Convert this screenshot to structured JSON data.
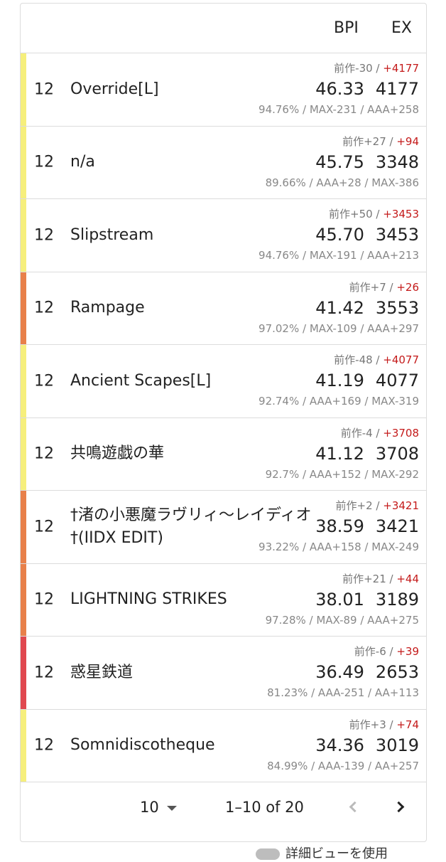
{
  "header": {
    "bpi_label": "BPI",
    "ex_label": "EX"
  },
  "rows": [
    {
      "level": "12",
      "title": "Override[L]",
      "prev": "前作-30 / ",
      "diff": "+4177",
      "bpi": "46.33",
      "ex": "4177",
      "sub": "94.76% / MAX-231 / AAA+258",
      "color": "#f6ef7c"
    },
    {
      "level": "12",
      "title": "n/a",
      "prev": "前作+27 / ",
      "diff": "+94",
      "bpi": "45.75",
      "ex": "3348",
      "sub": "89.66% / AAA+28 / MAX-386",
      "color": "#f6ef7c"
    },
    {
      "level": "12",
      "title": "Slipstream",
      "prev": "前作+50 / ",
      "diff": "+3453",
      "bpi": "45.70",
      "ex": "3453",
      "sub": "94.76% / MAX-191 / AAA+213",
      "color": "#f6ef7c"
    },
    {
      "level": "12",
      "title": "Rampage",
      "prev": "前作+7 / ",
      "diff": "+26",
      "bpi": "41.42",
      "ex": "3553",
      "sub": "97.02% / MAX-109 / AAA+297",
      "color": "#e8804a"
    },
    {
      "level": "12",
      "title": "Ancient Scapes[L]",
      "prev": "前作-48 / ",
      "diff": "+4077",
      "bpi": "41.19",
      "ex": "4077",
      "sub": "92.74% / AAA+169 / MAX-319",
      "color": "#f6ef7c"
    },
    {
      "level": "12",
      "title": "共鳴遊戯の華",
      "prev": "前作-4 / ",
      "diff": "+3708",
      "bpi": "41.12",
      "ex": "3708",
      "sub": "92.7% / AAA+152 / MAX-292",
      "color": "#f6ef7c"
    },
    {
      "level": "12",
      "title": "†渚の小悪魔ラヴリィ〜レイディオ†(IIDX EDIT)",
      "prev": "前作+2 / ",
      "diff": "+3421",
      "bpi": "38.59",
      "ex": "3421",
      "sub": "93.22% / AAA+158 / MAX-249",
      "color": "#e8804a"
    },
    {
      "level": "12",
      "title": "LIGHTNING STRIKES",
      "prev": "前作+21 / ",
      "diff": "+44",
      "bpi": "38.01",
      "ex": "3189",
      "sub": "97.28% / MAX-89 / AAA+275",
      "color": "#e8804a"
    },
    {
      "level": "12",
      "title": "惑星鉄道",
      "prev": "前作-6 / ",
      "diff": "+39",
      "bpi": "36.49",
      "ex": "2653",
      "sub": "81.23% / AAA-251 / AA+113",
      "color": "#e0484f"
    },
    {
      "level": "12",
      "title": "Somnidiscotheque",
      "prev": "前作+3 / ",
      "diff": "+74",
      "bpi": "34.36",
      "ex": "3019",
      "sub": "84.99% / AAA-139 / AA+257",
      "color": "#f6ef7c"
    }
  ],
  "pagination": {
    "per_page": "10",
    "range": "1–10 of 20"
  },
  "peek": {
    "text": "詳細ビューを使用"
  }
}
